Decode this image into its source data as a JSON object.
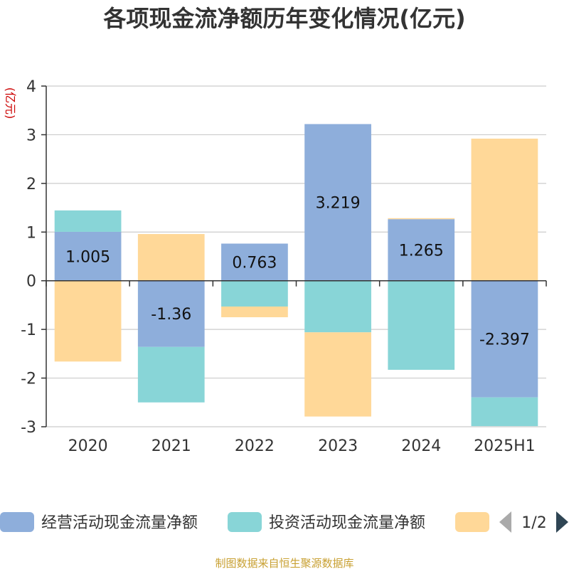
{
  "chart_data": {
    "type": "bar",
    "stacked": true,
    "title": "各项现金流净额历年变化情况(亿元)",
    "ylabel": "(亿元)",
    "categories": [
      "2020",
      "2021",
      "2022",
      "2023",
      "2024",
      "2025H1"
    ],
    "ylim": [
      -3,
      4
    ],
    "yticks": [
      -3,
      -2,
      -1,
      0,
      1,
      2,
      3,
      4
    ],
    "grid": true,
    "legend_position": "bottom",
    "series": [
      {
        "name": "经营活动现金流量净额",
        "color": "#8eaedb",
        "values": [
          1.005,
          -1.36,
          0.763,
          3.219,
          1.265,
          -2.397
        ],
        "labels": [
          "1.005",
          "-1.36",
          "0.763",
          "3.219",
          "1.265",
          "-2.397"
        ]
      },
      {
        "name": "投资活动现金流量净额",
        "color": "#88d5d7",
        "values": [
          0.44,
          -1.14,
          -0.53,
          -1.06,
          -1.83,
          -0.59
        ]
      },
      {
        "name": "",
        "color": "#ffd898",
        "values": [
          -1.66,
          0.96,
          -0.22,
          -1.73,
          0.02,
          2.92
        ]
      }
    ]
  },
  "legend": {
    "page_indicator": "1/2"
  },
  "source": "制图数据来自恒生聚源数据库"
}
